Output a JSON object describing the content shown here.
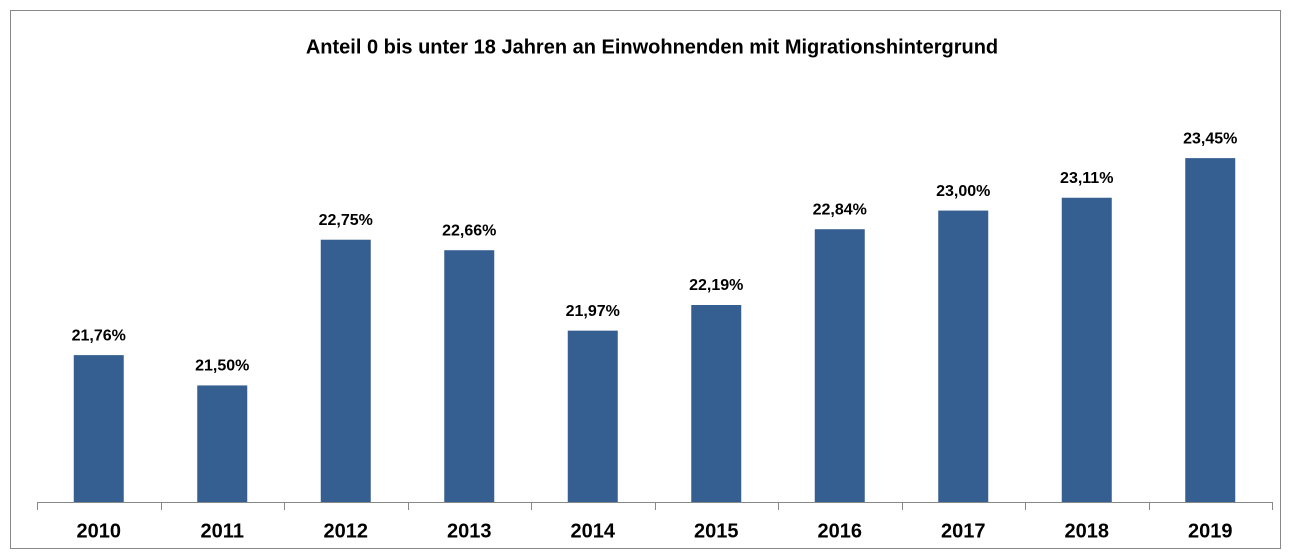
{
  "chart_data": {
    "type": "bar",
    "title": "Anteil 0 bis unter 18 Jahren an Einwohnenden mit Migrationshintergrund",
    "categories": [
      "2010",
      "2011",
      "2012",
      "2013",
      "2014",
      "2015",
      "2016",
      "2017",
      "2018",
      "2019"
    ],
    "values": [
      21.76,
      21.5,
      22.75,
      22.66,
      21.97,
      22.19,
      22.84,
      23.0,
      23.11,
      23.45
    ],
    "value_labels": [
      "21,76%",
      "21,50%",
      "22,75%",
      "22,66%",
      "21,97%",
      "22,19%",
      "22,84%",
      "23,00%",
      "23,11%",
      "23,45%"
    ],
    "color": "#365f91",
    "ylim": [
      20.5,
      24
    ]
  }
}
